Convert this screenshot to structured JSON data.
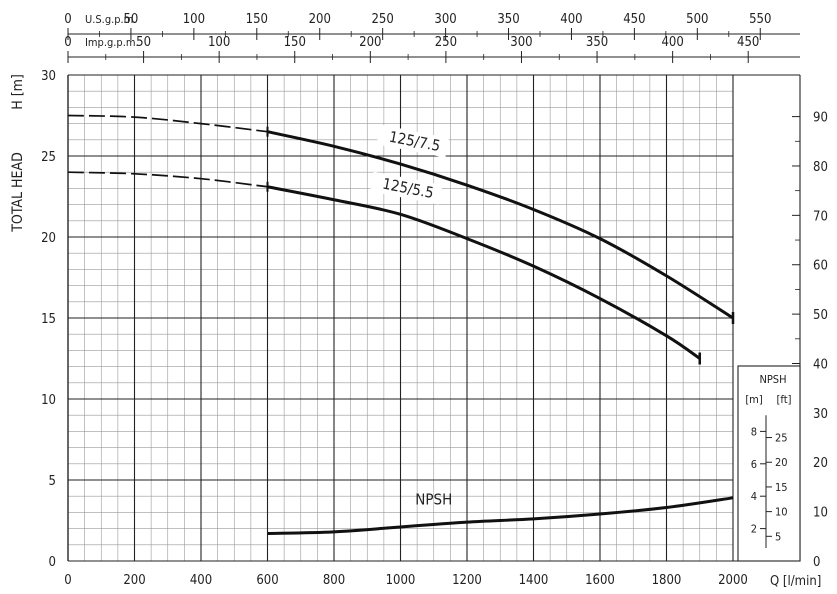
{
  "chart_data": {
    "type": "line",
    "title": "",
    "xlabel": "Q [l/min]",
    "ylabel": "H [m]",
    "ylabel_left": "TOTAL HEAD",
    "xlim": [
      0,
      2000
    ],
    "ylim": [
      0,
      30
    ],
    "grid": true,
    "x_ticks": [
      0,
      200,
      400,
      600,
      800,
      1000,
      1200,
      1400,
      1600,
      1800,
      2000
    ],
    "y_ticks": [
      0,
      5,
      10,
      15,
      20,
      25,
      30
    ],
    "top_axes": [
      {
        "label": "U.S.g.p.m.",
        "factor_lpm": 3.78541,
        "ticks": [
          0,
          50,
          100,
          150,
          200,
          250,
          300,
          350,
          400,
          450,
          500,
          550
        ]
      },
      {
        "label": "Imp.g.p.m.",
        "factor_lpm": 4.54609,
        "ticks": [
          0,
          50,
          100,
          150,
          200,
          250,
          300,
          350,
          400,
          450
        ]
      }
    ],
    "right_axis": {
      "unit": "ft",
      "factor_m": 0.3048,
      "ticks": [
        0,
        10,
        20,
        30,
        40,
        50,
        60,
        70,
        80,
        90
      ]
    },
    "series": [
      {
        "name": "125/7.5",
        "dashed_x": [
          0,
          200,
          400,
          600
        ],
        "dashed_y": [
          27.5,
          27.4,
          27.0,
          26.5
        ],
        "x": [
          600,
          800,
          1000,
          1200,
          1400,
          1600,
          1800,
          2000
        ],
        "y": [
          26.5,
          25.6,
          24.5,
          23.2,
          21.7,
          19.9,
          17.6,
          15.0
        ]
      },
      {
        "name": "125/5.5",
        "dashed_x": [
          0,
          200,
          400,
          600
        ],
        "dashed_y": [
          24.0,
          23.9,
          23.6,
          23.1
        ],
        "x": [
          600,
          800,
          1000,
          1200,
          1400,
          1600,
          1800,
          1900
        ],
        "y": [
          23.1,
          22.3,
          21.4,
          19.9,
          18.2,
          16.2,
          13.9,
          12.5
        ]
      },
      {
        "name": "NPSH",
        "x": [
          600,
          800,
          1000,
          1200,
          1400,
          1600,
          1800,
          2000
        ],
        "y": [
          1.7,
          1.8,
          2.1,
          2.4,
          2.6,
          2.9,
          3.3,
          3.9
        ]
      }
    ],
    "npsh_inset": {
      "title": "NPSH",
      "unit_m": "[m]",
      "unit_ft": "[ft]",
      "m_ticks": [
        2,
        4,
        6,
        8
      ],
      "ft_ticks": [
        5,
        10,
        15,
        20,
        25
      ]
    }
  }
}
